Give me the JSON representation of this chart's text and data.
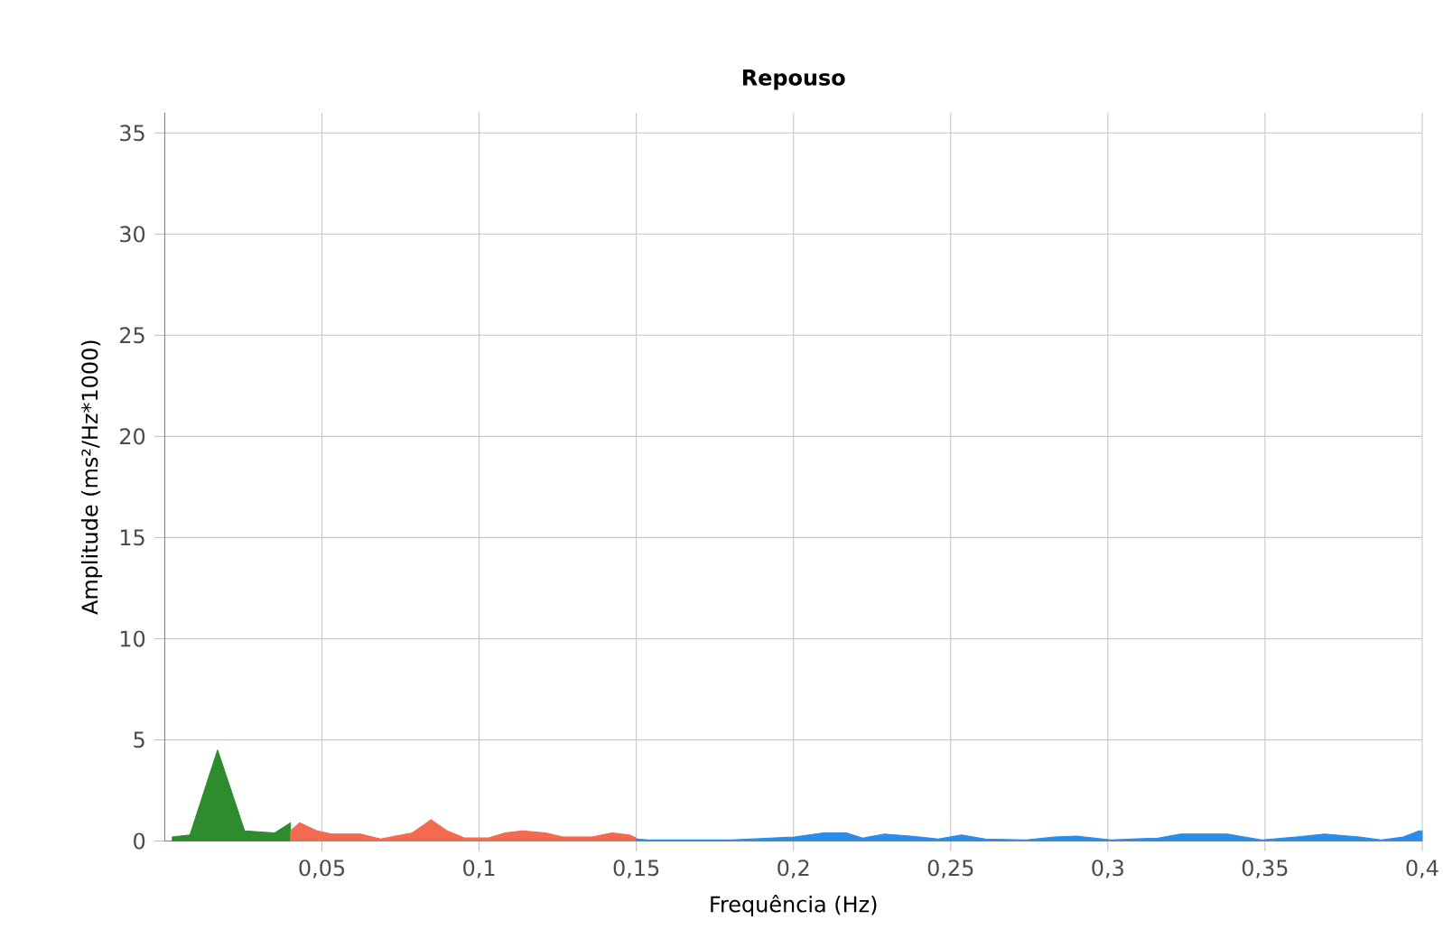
{
  "chart_data": {
    "type": "area",
    "title": "Repouso",
    "xlabel": "Frequência (Hz)",
    "ylabel": "Amplitude (ms²/Hz*1000)",
    "xlim": [
      0,
      0.4
    ],
    "ylim": [
      0,
      36
    ],
    "xticks": [
      {
        "value": 0.05,
        "label": "0,05"
      },
      {
        "value": 0.1,
        "label": "0,1"
      },
      {
        "value": 0.15,
        "label": "0,15"
      },
      {
        "value": 0.2,
        "label": "0,2"
      },
      {
        "value": 0.25,
        "label": "0,25"
      },
      {
        "value": 0.3,
        "label": "0,3"
      },
      {
        "value": 0.35,
        "label": "0,35"
      },
      {
        "value": 0.4,
        "label": "0,4"
      }
    ],
    "yticks": [
      0,
      5,
      10,
      15,
      20,
      25,
      30,
      35
    ],
    "grid": true,
    "series": [
      {
        "color": "#2e8b2e",
        "x": [
          0.0024,
          0.008,
          0.0168,
          0.0254,
          0.035,
          0.04
        ],
        "values": [
          0.2,
          0.3,
          4.5,
          0.5,
          0.4,
          0.9
        ]
      },
      {
        "color": "#f26a4f",
        "x": [
          0.04,
          0.0429,
          0.0484,
          0.053,
          0.0622,
          0.0687,
          0.0733,
          0.0788,
          0.0847,
          0.0898,
          0.0954,
          0.1028,
          0.1083,
          0.1138,
          0.1211,
          0.1267,
          0.1359,
          0.1423,
          0.1478,
          0.15
        ],
        "values": [
          0.5,
          0.9,
          0.5,
          0.35,
          0.35,
          0.1,
          0.25,
          0.4,
          1.05,
          0.5,
          0.15,
          0.15,
          0.4,
          0.5,
          0.4,
          0.2,
          0.2,
          0.4,
          0.3,
          0.15
        ]
      },
      {
        "color": "#2e8ce6",
        "x": [
          0.15,
          0.154,
          0.18,
          0.2003,
          0.2095,
          0.2168,
          0.222,
          0.229,
          0.237,
          0.246,
          0.2535,
          0.261,
          0.274,
          0.283,
          0.29,
          0.301,
          0.316,
          0.323,
          0.338,
          0.349,
          0.36,
          0.369,
          0.38,
          0.387,
          0.394,
          0.399,
          0.4
        ],
        "values": [
          0.1,
          0.05,
          0.05,
          0.2,
          0.4,
          0.4,
          0.15,
          0.35,
          0.25,
          0.1,
          0.3,
          0.1,
          0.05,
          0.2,
          0.25,
          0.05,
          0.15,
          0.35,
          0.35,
          0.05,
          0.2,
          0.35,
          0.2,
          0.05,
          0.2,
          0.5,
          0.5
        ]
      }
    ]
  }
}
